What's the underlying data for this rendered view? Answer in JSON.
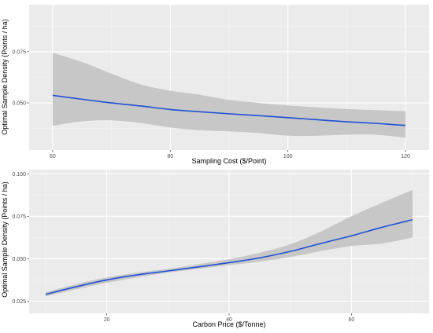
{
  "chart_data": [
    {
      "type": "line",
      "title": "",
      "xlabel": "Sampling Cost ($/Point)",
      "ylabel": "Optimal Sample Density (Points / ha)",
      "xlim": [
        56,
        124
      ],
      "ylim": [
        0.027,
        0.098
      ],
      "x_ticks": [
        60,
        80,
        100,
        120
      ],
      "y_ticks": [
        0.05,
        0.075
      ],
      "x_tick_labels": [
        "60",
        "80",
        "100",
        "120"
      ],
      "y_tick_labels": [
        "0.050",
        "0.075"
      ],
      "grid": true,
      "legend": "none",
      "series": [
        {
          "line_color": "#1f4fd6",
          "band_color": "#c7c7c7",
          "x": [
            60,
            65,
            70,
            75,
            80,
            85,
            90,
            95,
            100,
            105,
            110,
            115,
            120
          ],
          "y": [
            0.0537,
            0.0518,
            0.05,
            0.0485,
            0.0468,
            0.0457,
            0.0447,
            0.0438,
            0.0428,
            0.0418,
            0.0408,
            0.04,
            0.039
          ],
          "lower": [
            0.0388,
            0.041,
            0.0415,
            0.0402,
            0.038,
            0.0367,
            0.0361,
            0.0353,
            0.034,
            0.034,
            0.0345,
            0.0345,
            0.033
          ],
          "upper": [
            0.0745,
            0.07,
            0.0643,
            0.059,
            0.056,
            0.054,
            0.0515,
            0.05,
            0.0488,
            0.0478,
            0.047,
            0.0465,
            0.046
          ]
        }
      ]
    },
    {
      "type": "line",
      "title": "",
      "xlabel": "Carbon Price ($/Tonne)",
      "ylabel": "Optimal Sample Density (Points / ha)",
      "xlim": [
        7.3,
        72.7
      ],
      "ylim": [
        0.0178,
        0.1025
      ],
      "x_ticks": [
        20,
        40,
        60
      ],
      "y_ticks": [
        0.025,
        0.05,
        0.075,
        0.1
      ],
      "x_tick_labels": [
        "20",
        "40",
        "60"
      ],
      "y_tick_labels": [
        "0.025",
        "0.050",
        "0.075",
        "0.100"
      ],
      "grid": true,
      "legend": "none",
      "series": [
        {
          "line_color": "#1f4fd6",
          "band_color": "#c7c7c7",
          "x": [
            10,
            15,
            20,
            25,
            30,
            35,
            40,
            45,
            50,
            55,
            60,
            65,
            70
          ],
          "y": [
            0.029,
            0.0335,
            0.0375,
            0.0405,
            0.0428,
            0.0452,
            0.0477,
            0.0505,
            0.0543,
            0.059,
            0.0635,
            0.0685,
            0.073
          ],
          "lower": [
            0.0278,
            0.032,
            0.0358,
            0.039,
            0.0418,
            0.044,
            0.0462,
            0.0483,
            0.051,
            0.0545,
            0.0575,
            0.059,
            0.0625
          ],
          "upper": [
            0.0303,
            0.035,
            0.039,
            0.0418,
            0.044,
            0.0468,
            0.0497,
            0.0535,
            0.0585,
            0.066,
            0.075,
            0.083,
            0.0905
          ]
        }
      ]
    }
  ]
}
